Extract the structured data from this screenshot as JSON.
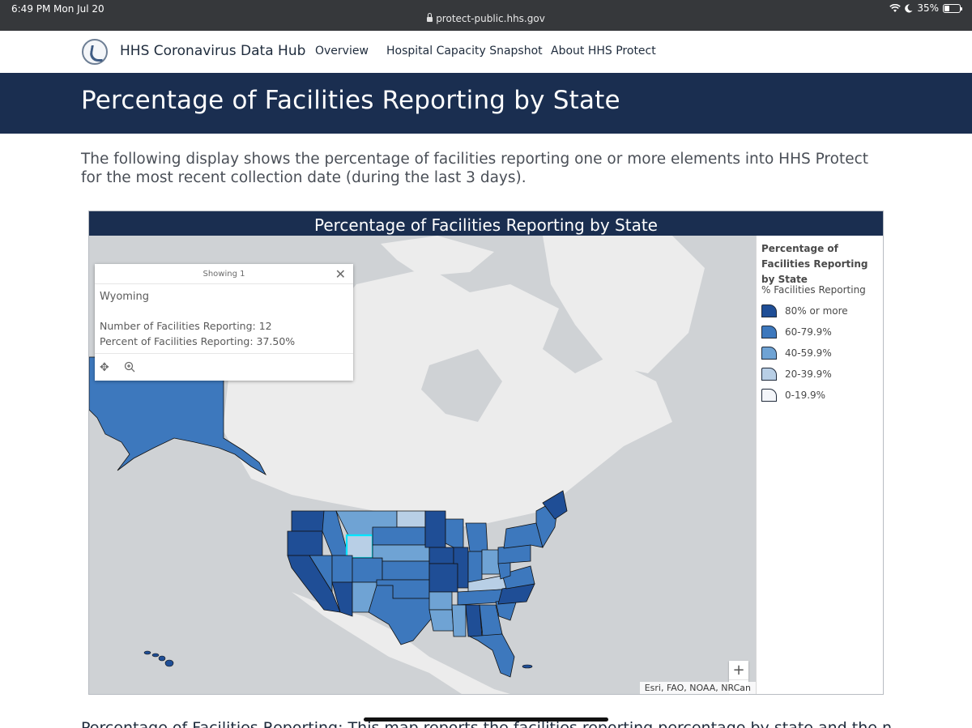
{
  "status_bar": {
    "time": "6:49 PM",
    "date": "Mon Jul 20",
    "url": "protect-public.hhs.gov",
    "battery": "35%",
    "battery_level": 0.35
  },
  "nav": {
    "brand": "HHS Coronavirus Data Hub",
    "links": [
      "Overview",
      "Hospital Capacity Snapshot",
      "About HHS Protect"
    ]
  },
  "page": {
    "title": "Percentage of Facilities Reporting by State",
    "intro": "The following display shows the percentage of facilities reporting one or more elements into HHS Protect for the most recent collection date (during the last 3 days).",
    "next_heading": "Percentage of Facilities Reporting: This map reports the facilities reporting percentage by state and the number"
  },
  "dashboard": {
    "header": "Percentage of Facilities Reporting by State",
    "popup": {
      "header": "Showing 1",
      "state": "Wyoming",
      "count_label": "Number of Facilities Reporting:  12",
      "percent_label": "Percent of Facilities Reporting: 37.50%"
    },
    "legend": {
      "title": "Percentage of Facilities Reporting by State",
      "subtitle": "% Facilities Reporting",
      "items": [
        {
          "label": "80% or more",
          "color": "#1f4e96"
        },
        {
          "label": "60-79.9%",
          "color": "#3d78bd"
        },
        {
          "label": "40-59.9%",
          "color": "#6fa3d4"
        },
        {
          "label": "20-39.9%",
          "color": "#b8cfe6"
        },
        {
          "label": "0-19.9%",
          "color": "#f4f6fa"
        }
      ]
    },
    "zoom": {
      "in": "+",
      "out": "−"
    },
    "attribution": "Esri, FAO, NOAA, NRCan"
  }
}
